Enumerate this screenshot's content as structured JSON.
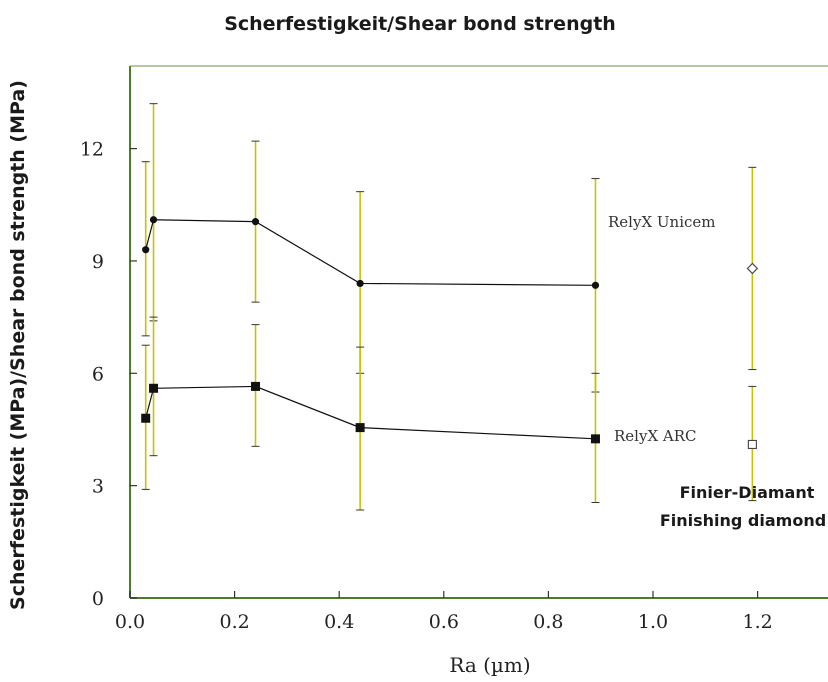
{
  "chart_data": {
    "type": "line",
    "title": "Scherfestigkeit/Shear bond strength",
    "xlabel": "Ra (µm)",
    "ylabel": "Scherfestigkeit (MPa)/Shear bond strength (MPa)",
    "xlim": [
      0.0,
      1.34
    ],
    "ylim": [
      0,
      13.6
    ],
    "xticks": [
      "0.0",
      "0.2",
      "0.4",
      "0.6",
      "0.8",
      "1.0",
      "1.2"
    ],
    "yticks": [
      "0",
      "3",
      "6",
      "9",
      "12"
    ],
    "grid": false,
    "series": [
      {
        "name": "RelyX Unicem",
        "marker": "circle-filled",
        "x": [
          0.03,
          0.045,
          0.24,
          0.44,
          0.89
        ],
        "y": [
          9.3,
          10.1,
          10.05,
          8.4,
          8.35
        ],
        "err_low": [
          7.0,
          7.4,
          7.9,
          6.0,
          5.5
        ],
        "err_high": [
          11.65,
          13.2,
          12.2,
          10.85,
          11.2
        ]
      },
      {
        "name": "RelyX ARC",
        "marker": "square-filled",
        "x": [
          0.03,
          0.045,
          0.24,
          0.44,
          0.89
        ],
        "y": [
          4.8,
          5.6,
          5.65,
          4.55,
          4.25
        ],
        "err_low": [
          2.9,
          3.8,
          4.05,
          2.35,
          2.55
        ],
        "err_high": [
          6.75,
          7.5,
          7.3,
          6.7,
          6.0
        ]
      }
    ],
    "reference_points": [
      {
        "x": 1.19,
        "y": 8.8,
        "err_low": 6.1,
        "err_high": 11.5,
        "marker": "diamond-open"
      },
      {
        "x": 1.19,
        "y": 4.1,
        "err_low": 2.6,
        "err_high": 5.65,
        "marker": "square-open"
      }
    ],
    "annotations": {
      "unicem_label": "RelyX Unicem",
      "arc_label": "RelyX ARC",
      "finishing_de": "Finier-Diamant",
      "finishing_en": "Finishing diamond"
    },
    "colors": {
      "errorbar": "#c9c200",
      "line": "#111111",
      "axes": "#4a7a2a"
    }
  }
}
